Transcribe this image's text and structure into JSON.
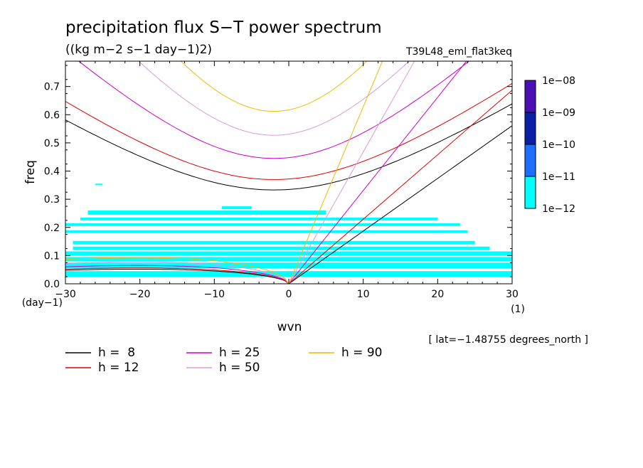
{
  "colors": {
    "background": "#ffffff",
    "axis": "#000000"
  },
  "chart_data": {
    "type": "contour",
    "title": "precipitation flux S−T power spectrum",
    "subtitle": "((kg m−2 s−1 day−1)2)",
    "dataset": "T39L48_eml_flat3keq",
    "xlabel": "wvn",
    "ylabel": "freq",
    "x_unit": "(1)",
    "y_unit": "(day−1)",
    "annotation": "[ lat=−1.48755 degrees_north ]",
    "xlim": [
      -30,
      30
    ],
    "ylim": [
      0,
      0.79
    ],
    "xticks": [
      -30,
      -20,
      -10,
      0,
      10,
      20,
      30
    ],
    "xtick_labels": [
      "−30",
      "−20",
      "−10",
      "0",
      "10",
      "20",
      "30"
    ],
    "yticks": [
      0,
      0.1,
      0.2,
      0.3,
      0.4,
      0.5,
      0.6,
      0.7
    ],
    "ytick_labels": [
      "0.0",
      "0.1",
      "0.2",
      "0.3",
      "0.4",
      "0.5",
      "0.6",
      "0.7"
    ],
    "colorbar": {
      "levels": [
        "1e−08",
        "1e−09",
        "1e−10",
        "1e−11",
        "1e−12"
      ],
      "colors": [
        "#4b0fb4",
        "#0a1ea8",
        "#1e6eff",
        "#00ffff"
      ]
    },
    "contour_fill_color": "#00ffff",
    "power_regions": [
      {
        "x": [
          -30,
          30
        ],
        "y": [
          0.025,
          0.045
        ]
      },
      {
        "x": [
          -30,
          30
        ],
        "y": [
          0.055,
          0.075
        ]
      },
      {
        "x": [
          -30,
          30
        ],
        "y": [
          0.08,
          0.095
        ]
      },
      {
        "x": [
          -30,
          30
        ],
        "y": [
          0.1,
          0.115
        ]
      },
      {
        "x": [
          -29,
          27
        ],
        "y": [
          0.12,
          0.132
        ]
      },
      {
        "x": [
          -29,
          25
        ],
        "y": [
          0.14,
          0.152
        ]
      },
      {
        "x": [
          -30,
          24
        ],
        "y": [
          0.18,
          0.19
        ]
      },
      {
        "x": [
          -30,
          23
        ],
        "y": [
          0.205,
          0.215
        ]
      },
      {
        "x": [
          -28,
          20
        ],
        "y": [
          0.225,
          0.235
        ]
      },
      {
        "x": [
          -27,
          5
        ],
        "y": [
          0.245,
          0.26
        ]
      },
      {
        "x": [
          -9,
          -5
        ],
        "y": [
          0.265,
          0.275
        ]
      },
      {
        "x": [
          -26,
          -25
        ],
        "y": [
          0.35,
          0.355
        ]
      }
    ],
    "legend": [
      {
        "label": "h =  8",
        "color": "#000000",
        "h": 8
      },
      {
        "label": "h = 12",
        "color": "#dd0000",
        "h": 12
      },
      {
        "label": "h = 25",
        "color": "#cc00cc",
        "h": 25
      },
      {
        "label": "h = 50",
        "color": "#dd99dd",
        "h": 50
      },
      {
        "label": "h = 90",
        "color": "#eebb00",
        "h": 90
      }
    ],
    "series": [
      {
        "name": "h = 8",
        "color": "#000000",
        "kelvin_slope": 0.0187,
        "ig_min": 0.333,
        "mrg_peak": 0.06,
        "ig_curv": 0.00029
      },
      {
        "name": "h = 12",
        "color": "#dd0000",
        "kelvin_slope": 0.0229,
        "ig_min": 0.37,
        "mrg_peak": 0.065,
        "ig_curv": 0.00036
      },
      {
        "name": "h = 25",
        "color": "#cc00cc",
        "kelvin_slope": 0.0331,
        "ig_min": 0.445,
        "mrg_peak": 0.075,
        "ig_curv": 0.00062
      },
      {
        "name": "h = 50",
        "color": "#dd99dd",
        "kelvin_slope": 0.0468,
        "ig_min": 0.527,
        "mrg_peak": 0.09,
        "ig_curv": 0.00105
      },
      {
        "name": "h = 90",
        "color": "#eebb00",
        "kelvin_slope": 0.0628,
        "ig_min": 0.612,
        "mrg_peak": 0.108,
        "ig_curv": 0.0016
      }
    ]
  }
}
